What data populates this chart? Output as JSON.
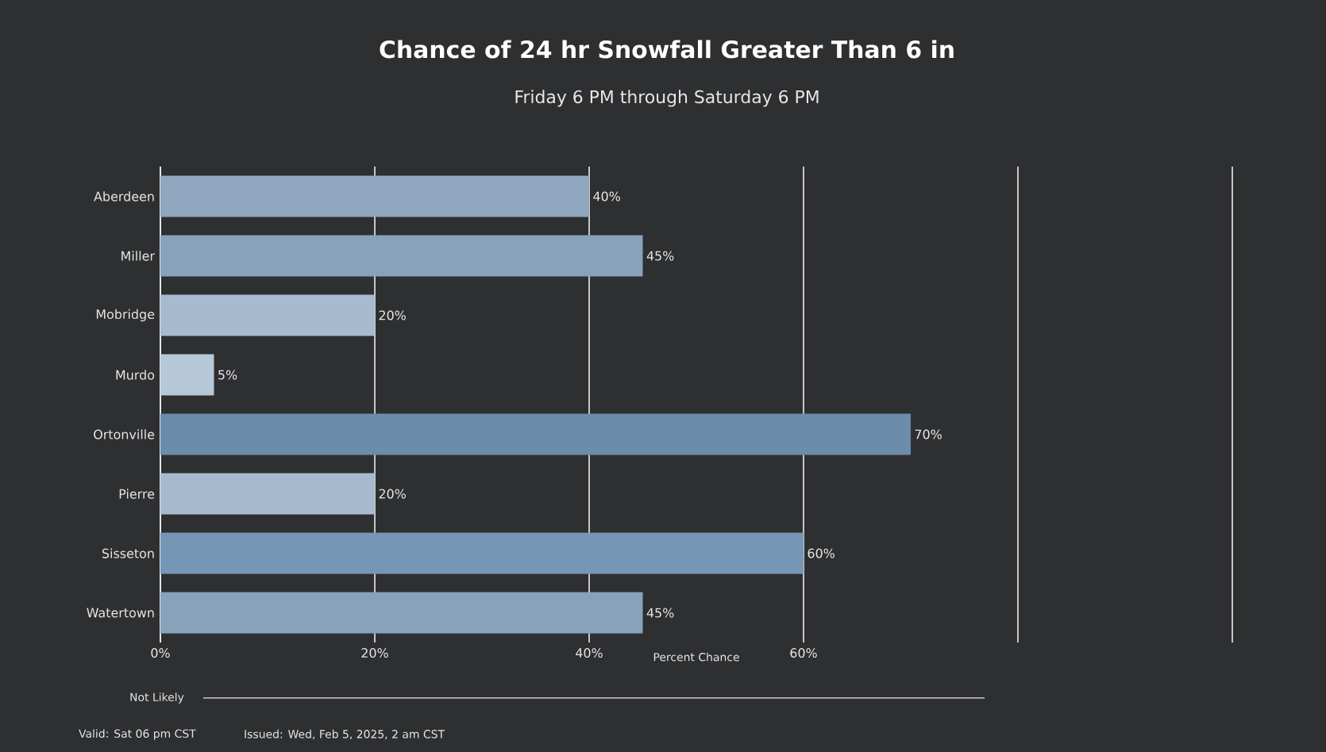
{
  "chart_data": {
    "type": "bar",
    "orientation": "horizontal",
    "title": "Chance of 24 hr Snowfall Greater Than 6 in",
    "subtitle": "Friday 6 PM through Saturday 6 PM",
    "xlabel": "Percent Chance",
    "categories": [
      "Aberdeen",
      "Miller",
      "Mobridge",
      "Murdo",
      "Ortonville",
      "Pierre",
      "Sisseton",
      "Watertown"
    ],
    "values": [
      40,
      45,
      20,
      5,
      70,
      20,
      60,
      45
    ],
    "value_labels": [
      "40%",
      "45%",
      "20%",
      "5%",
      "70%",
      "20%",
      "60%",
      "45%"
    ],
    "colors": [
      "#8fa7bf",
      "#88a2bc",
      "#a7bbd0",
      "#b7c8d8",
      "#6b8cab",
      "#a7bbd0",
      "#7696b5",
      "#88a2bc"
    ],
    "xlim": [
      0,
      100
    ],
    "xticks": [
      {
        "value": 0,
        "label": "0%"
      },
      {
        "value": 20,
        "label": "20%"
      },
      {
        "value": 40,
        "label": "40%"
      },
      {
        "value": 60,
        "label": "60%"
      },
      {
        "value": 80,
        "label": null
      },
      {
        "value": 100,
        "label": null
      }
    ],
    "grid": "x",
    "annotations": [
      "Not Likely",
      "Valid: Sat 06 pm CST",
      "Issued: Wed, Feb 5, 2025, 2 am CST"
    ]
  }
}
